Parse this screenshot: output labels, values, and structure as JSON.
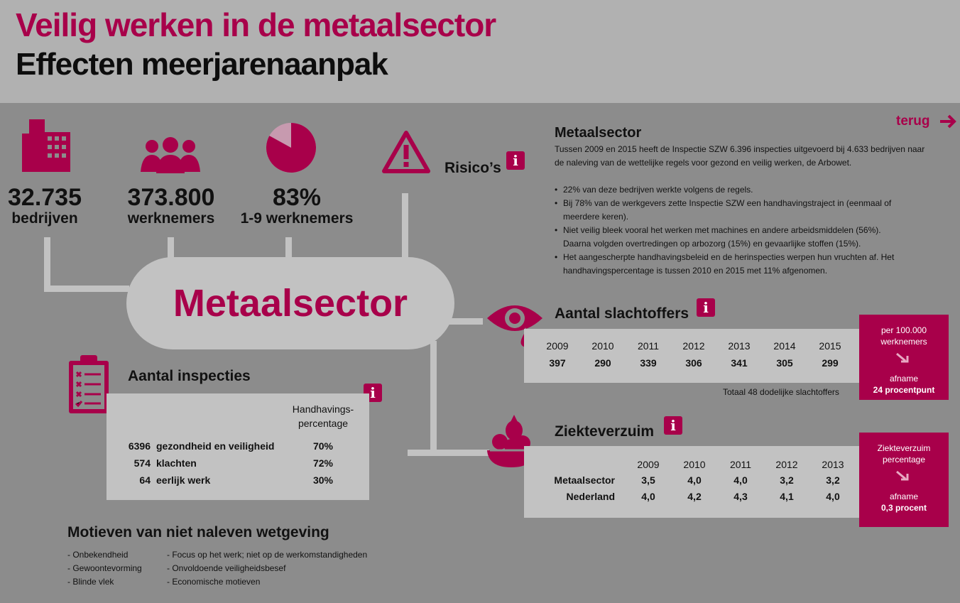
{
  "header": {
    "title": "Veilig werken in de metaalsector",
    "subtitle": "Effecten meerjarenaanpak"
  },
  "stats": [
    {
      "value": "32.735",
      "label": "bedrijven",
      "icon": "building-icon"
    },
    {
      "value": "373.800",
      "label": "werknemers",
      "icon": "people-icon"
    },
    {
      "value": "83%",
      "label": "1-9 werknemers",
      "icon": "pie-icon",
      "fraction": 0.83
    },
    {
      "label": "Risico’s",
      "icon": "warning-icon"
    }
  ],
  "hub": {
    "label": "Metaalsector"
  },
  "nav": {
    "back_label": "terug"
  },
  "intro": {
    "title": "Metaalsector",
    "text": "Tussen 2009 en 2015 heeft de Inspectie SZW 6.396 inspecties uitgevoerd bij 4.633 bedrijven naar de naleving van de wettelijke regels voor gezond en veilig werken, de Arbowet.",
    "bullets": [
      "22% van deze bedrijven werkte volgens de regels.",
      "Bij 78% van de werkgevers zette Inspectie SZW een handhavingstraject in (eenmaal of meerdere keren).",
      "Niet veilig bleek vooral het werken met machines en andere arbeidsmiddelen (56%). Daarna volgden overtredingen op arbozorg (15%) en gevaarlijke stoffen (15%).",
      "Het aangescherpte handhavingsbeleid en de herinspecties werpen hun vruchten af. Het handhavingspercentage is tussen 2010 en 2015 met 11% afgenomen."
    ]
  },
  "victims": {
    "title": "Aantal slachtoffers",
    "years": [
      "2009",
      "2010",
      "2011",
      "2012",
      "2013",
      "2014",
      "2015"
    ],
    "values": [
      "397",
      "290",
      "339",
      "306",
      "341",
      "305",
      "299"
    ],
    "note": "Totaal 48 dodelijke slachtoffers",
    "side_top": "per 100.000 werknemers",
    "side_label": "afname",
    "side_value": "24 procentpunt"
  },
  "absence": {
    "title": "Ziekteverzuim",
    "years": [
      "2009",
      "2010",
      "2011",
      "2012",
      "2013"
    ],
    "rows": [
      {
        "label": "Metaalsector",
        "values": [
          "3,5",
          "4,0",
          "4,0",
          "3,2",
          "3,2"
        ]
      },
      {
        "label": "Nederland",
        "values": [
          "4,0",
          "4,2",
          "4,3",
          "4,1",
          "4,0"
        ]
      }
    ],
    "side_top": "Ziekteverzuim percentage",
    "side_label": "afname",
    "side_value": "0,3 procent"
  },
  "inspections": {
    "title": "Aantal inspecties",
    "col_header": "Handhavings-percentage",
    "rows": [
      {
        "count": "6396",
        "label": "gezondheid en veiligheid",
        "pct": "70%"
      },
      {
        "count": "574",
        "label": "klachten",
        "pct": "72%"
      },
      {
        "count": "64",
        "label": "eerlijk werk",
        "pct": "30%"
      }
    ]
  },
  "motives": {
    "title": "Motieven van niet naleven wetgeving",
    "col1": [
      "- Onbekendheid",
      "- Gewoontevorming",
      "- Blinde vlek"
    ],
    "col2": [
      "- Focus op het werk; niet op de werkomstandigheden",
      "- Onvoldoende veiligheidsbesef",
      "- Economische motieven"
    ]
  },
  "colors": {
    "accent": "#a8004a",
    "panel": "#c2c2c2",
    "background": "#8c8c8c",
    "header": "#b1b1b1"
  }
}
